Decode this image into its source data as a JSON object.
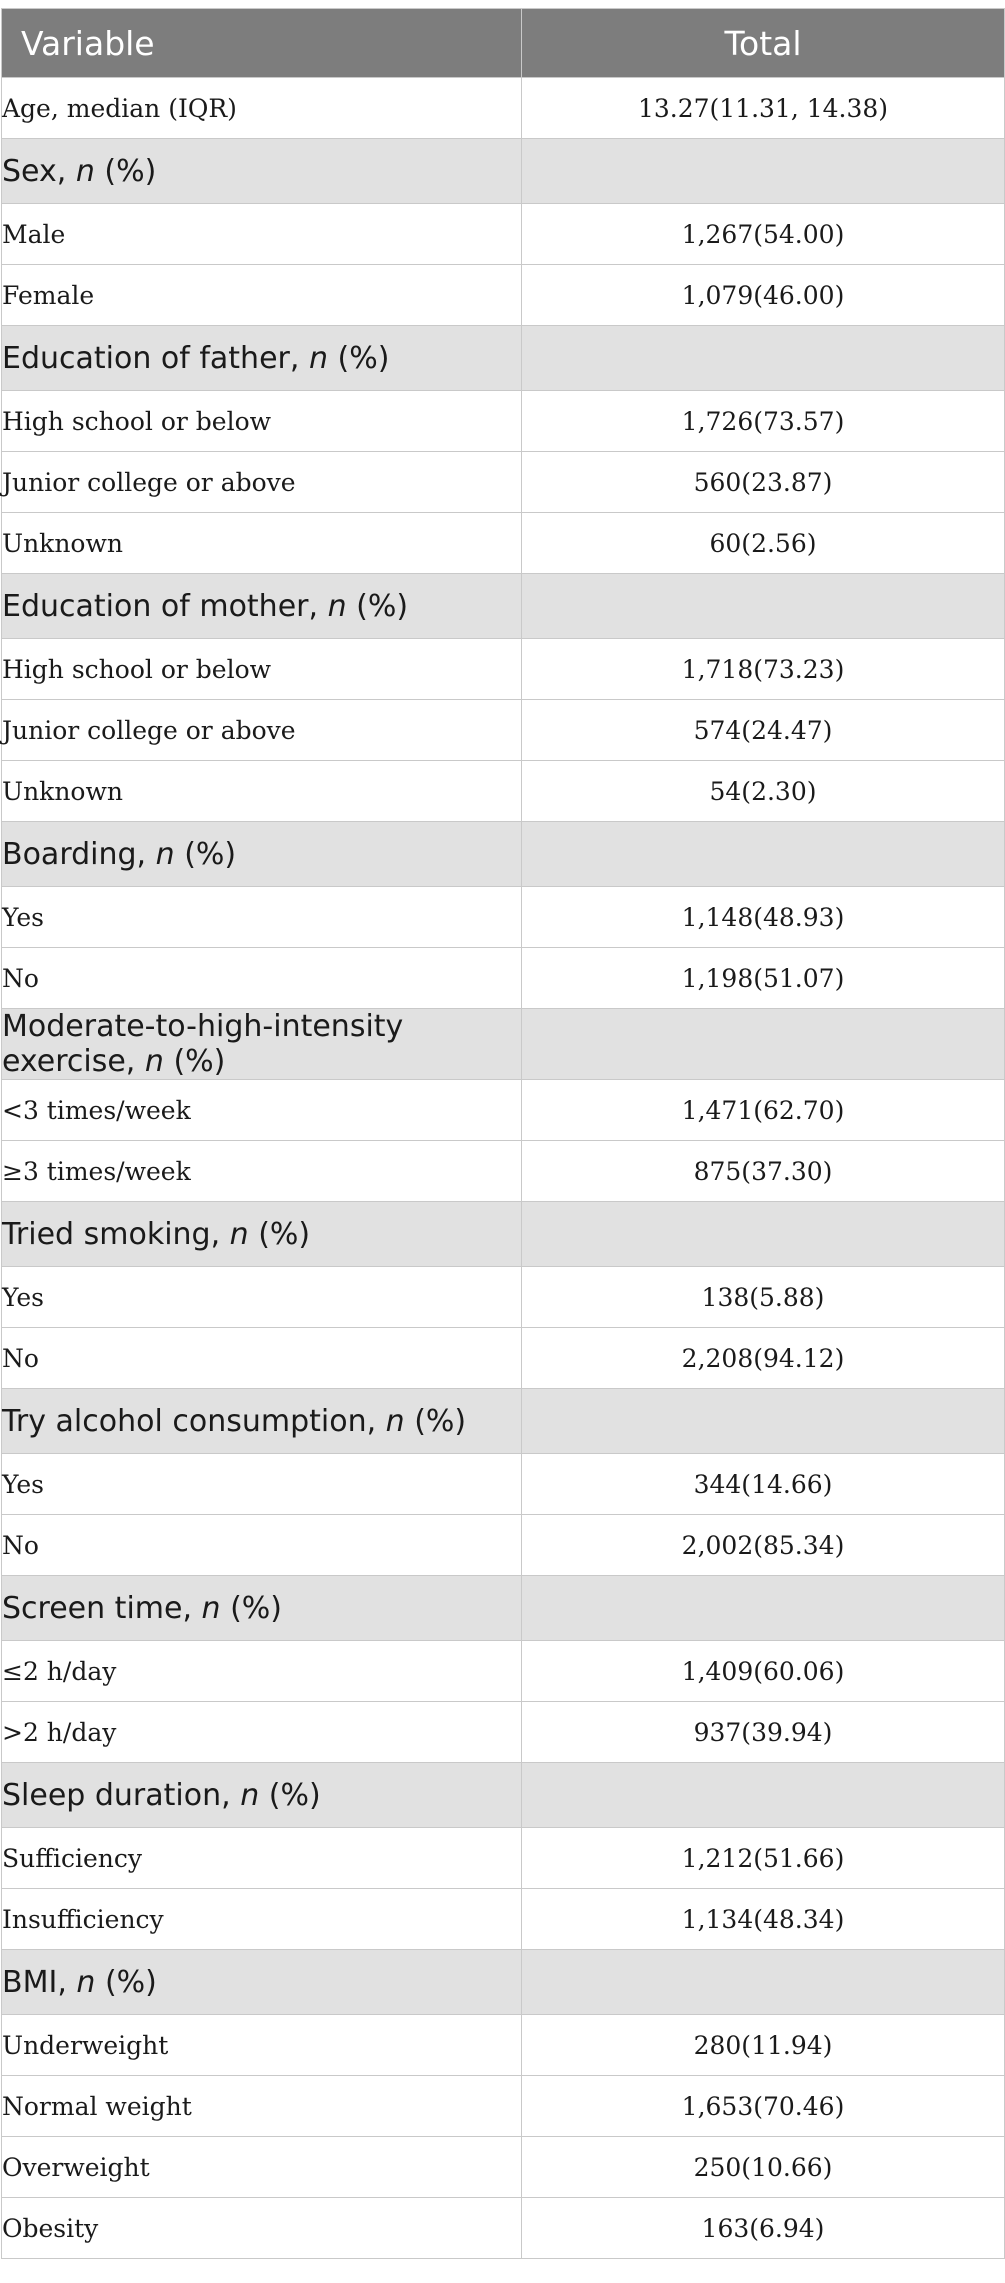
{
  "header": {
    "variable": "Variable",
    "total": "Total"
  },
  "age": {
    "label": "Age, median (IQR)",
    "value": "13.27(11.31, 14.38)"
  },
  "sections": [
    {
      "pre": "Sex, ",
      "n": "n",
      "post": " (%)",
      "rows": [
        {
          "label": "Male",
          "value": "1,267(54.00)"
        },
        {
          "label": "Female",
          "value": "1,079(46.00)"
        }
      ]
    },
    {
      "pre": "Education of father, ",
      "n": "n",
      "post": " (%)",
      "rows": [
        {
          "label": "High school or below",
          "value": "1,726(73.57)"
        },
        {
          "label": "Junior college or above",
          "value": "560(23.87)"
        },
        {
          "label": "Unknown",
          "value": "60(2.56)"
        }
      ]
    },
    {
      "pre": "Education of mother, ",
      "n": "n",
      "post": " (%)",
      "rows": [
        {
          "label": "High school or below",
          "value": "1,718(73.23)"
        },
        {
          "label": "Junior college or above",
          "value": "574(24.47)"
        },
        {
          "label": "Unknown",
          "value": "54(2.30)"
        }
      ]
    },
    {
      "pre": "Boarding, ",
      "n": "n",
      "post": " (%)",
      "rows": [
        {
          "label": "Yes",
          "value": "1,148(48.93)"
        },
        {
          "label": "No",
          "value": "1,198(51.07)"
        }
      ]
    },
    {
      "pre": "Moderate-to-high-intensity exercise, ",
      "n": "n",
      "post": " (%)",
      "rows": [
        {
          "label": "<3 times/week",
          "value": "1,471(62.70)"
        },
        {
          "label": "≥3 times/week",
          "value": "875(37.30)"
        }
      ]
    },
    {
      "pre": "Tried smoking, ",
      "n": "n",
      "post": " (%)",
      "rows": [
        {
          "label": "Yes",
          "value": "138(5.88)"
        },
        {
          "label": "No",
          "value": "2,208(94.12)"
        }
      ]
    },
    {
      "pre": "Try alcohol consumption, ",
      "n": "n",
      "post": " (%)",
      "rows": [
        {
          "label": "Yes",
          "value": "344(14.66)"
        },
        {
          "label": "No",
          "value": "2,002(85.34)"
        }
      ]
    },
    {
      "pre": "Screen time, ",
      "n": "n",
      "post": " (%)",
      "rows": [
        {
          "label": "≤2 h/day",
          "value": "1,409(60.06)"
        },
        {
          "label": ">2 h/day",
          "value": "937(39.94)"
        }
      ]
    },
    {
      "pre": "Sleep duration, ",
      "n": "n",
      "post": " (%)",
      "rows": [
        {
          "label": "Sufficiency",
          "value": "1,212(51.66)"
        },
        {
          "label": "Insufficiency",
          "value": "1,134(48.34)"
        }
      ]
    },
    {
      "pre": "BMI, ",
      "n": "n",
      "post": " (%)",
      "rows": [
        {
          "label": "Underweight",
          "value": "280(11.94)"
        },
        {
          "label": "Normal weight",
          "value": "1,653(70.46)"
        },
        {
          "label": "Overweight",
          "value": "250(10.66)"
        },
        {
          "label": "Obesity",
          "value": "163(6.94)"
        }
      ]
    }
  ]
}
